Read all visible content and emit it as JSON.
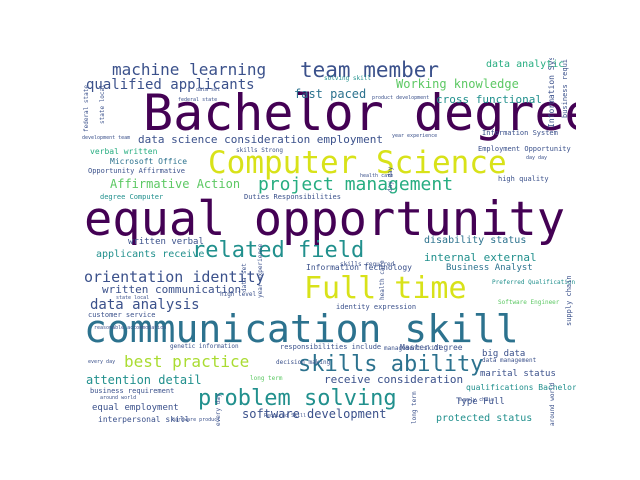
{
  "words": {
    "bachelor_degree": "Bachelor degree",
    "equal_opportunity": "equal opportunity",
    "communication_skill": "communication skill",
    "computer_science": "Computer Science",
    "full_time": "Full time",
    "team_member": "team member",
    "related_field": "related field",
    "problem_solving": "problem solving",
    "skills_ability": "skills ability",
    "machine_learning": "machine learning",
    "qualified_applicants": "qualified applicants",
    "project_management": "project management",
    "orientation_identity": "orientation identity",
    "data_analysis": "data analysis",
    "best_practice": "best practice",
    "fast_paced": "fast paced",
    "working_knowledge": "Working knowledge",
    "data_analytic": "data analytic",
    "cross_functional": "cross functional",
    "affirmative_action": "Affirmative Action",
    "data_science_consideration": "data science consideration employment",
    "software_development": "software development",
    "attention_detail": "attention detail",
    "receive_consideration": "receive consideration",
    "written_communication": "written communication",
    "applicants_receive": "applicants receive",
    "written_verbal": "written verbal",
    "internal_external": "internal external",
    "disability_status": "disability status",
    "information_technology": "Information Technology",
    "business_analyst": "Business Analyst",
    "equal_employment": "equal employment",
    "interpersonal_skill": "interpersonal skill",
    "protected_status": "protected status",
    "type_full": "Type Full",
    "marital_status": "marital status",
    "master_degree": "Master degree",
    "big_data": "big data",
    "qualifications_bachelor": "qualifications Bachelor",
    "information_system": "Information System",
    "employment_opportunity": "Employment Opportunity",
    "verbal_written": "verbal written",
    "microsoft_office": "Microsoft Office",
    "opportunity_affirmative": "Opportunity Affirmative",
    "degree_computer": "degree Computer",
    "duties_responsibilities": "Duties Responsibilities",
    "skills_required": "skills required",
    "responsibilities_include": "responsibilities include",
    "management_skill": "management skill",
    "customer_service": "customer service",
    "high_level": "high level",
    "identity_expression": "identity expression",
    "decision_making": "decision making",
    "business_requirement": "business requirement",
    "high_quality": "high quality",
    "software_engineer": "Software Engineer",
    "preferred_qualification": "Preferred Qualification",
    "solving_skill": "solving skill",
    "skills_strong": "skills Strong",
    "federal_state": "federal state",
    "development_team": "development team",
    "genetic_information": "genetic information",
    "data_management": "data management",
    "day_day": "day day",
    "health_care": "health care",
    "supply_chain": "supply chain",
    "year_experience": "year experience",
    "reasonable_accommodation": "reasonable accommodation",
    "data_set": "data set",
    "state_local": "state local",
    "every_day": "every day",
    "long_term": "long term",
    "around_world": "around world",
    "product_development": "product development",
    "required_skill": "Required Skill",
    "hardware_product": "hardware product"
  }
}
